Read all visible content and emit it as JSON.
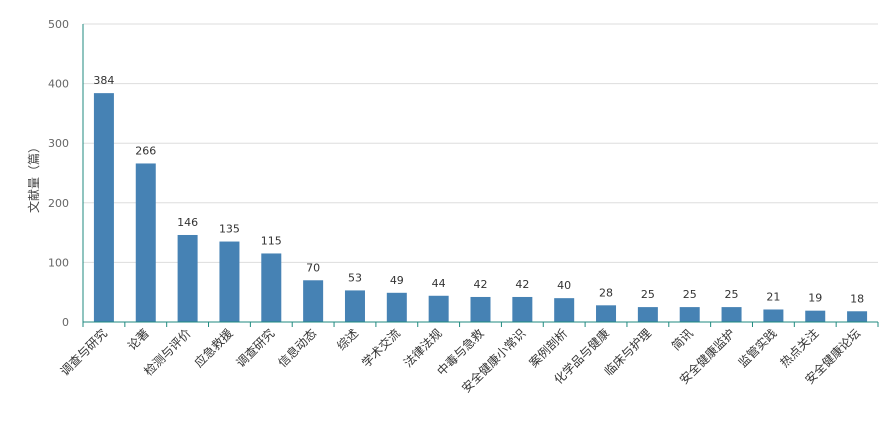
{
  "chart_data": {
    "type": "bar",
    "title": "",
    "xlabel": "",
    "ylabel": "文献量（篇）",
    "ylim": [
      0,
      500
    ],
    "yticks": [
      0,
      100,
      200,
      300,
      400,
      500
    ],
    "grid": true,
    "legend": "none",
    "categories": [
      "调查与研究",
      "论著",
      "检测与评价",
      "应急救援",
      "调查研究",
      "信息动态",
      "综述",
      "学术交流",
      "法律法规",
      "中毒与急救",
      "安全健康小常识",
      "案例剖析",
      "化学品与健康",
      "临床与护理",
      "简讯",
      "安全健康监护",
      "监管实践",
      "热点关注",
      "安全健康论坛"
    ],
    "values": [
      384,
      266,
      146,
      135,
      115,
      70,
      53,
      49,
      44,
      42,
      42,
      40,
      28,
      25,
      25,
      25,
      21,
      19,
      18
    ]
  },
  "colors": {
    "bar": "#4682b4",
    "axis": "#1f8a7f",
    "grid": "#dddddd"
  }
}
